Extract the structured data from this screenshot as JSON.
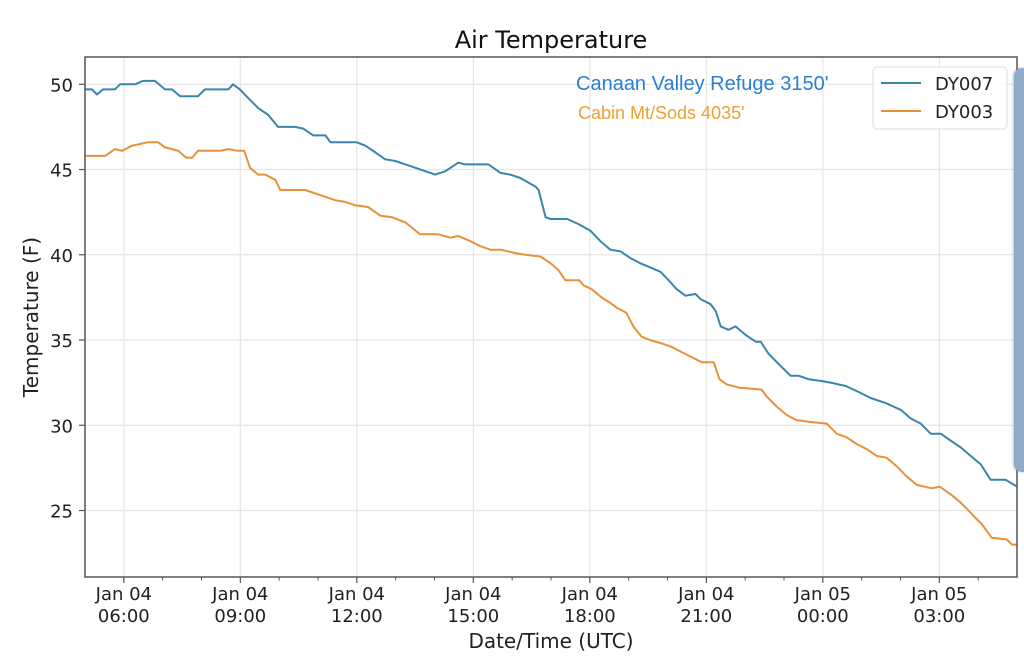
{
  "chart_data": {
    "type": "line",
    "title": "Air Temperature",
    "xlabel": "Date/Time (UTC)",
    "ylabel": "Temperature (F)",
    "x_unit": "hours since Jan 04 00:00 UTC",
    "xlim": [
      5.0,
      29.0
    ],
    "ylim": [
      21.1,
      51.6
    ],
    "grid": true,
    "yticks": [
      25,
      30,
      35,
      40,
      45,
      50
    ],
    "xticks": [
      {
        "x": 6,
        "label": [
          "Jan 04",
          "06:00"
        ]
      },
      {
        "x": 9,
        "label": [
          "Jan 04",
          "09:00"
        ]
      },
      {
        "x": 12,
        "label": [
          "Jan 04",
          "12:00"
        ]
      },
      {
        "x": 15,
        "label": [
          "Jan 04",
          "15:00"
        ]
      },
      {
        "x": 18,
        "label": [
          "Jan 04",
          "18:00"
        ]
      },
      {
        "x": 21,
        "label": [
          "Jan 04",
          "21:00"
        ]
      },
      {
        "x": 24,
        "label": [
          "Jan 05",
          "00:00"
        ]
      },
      {
        "x": 27,
        "label": [
          "Jan 05",
          "03:00"
        ]
      }
    ],
    "minor_xticks": [
      7,
      8,
      10,
      11,
      13,
      14,
      16,
      17,
      19,
      20,
      22,
      23,
      25,
      26,
      28
    ],
    "legend": {
      "position": "top-right",
      "entries": [
        "DY007",
        "DY003"
      ]
    },
    "annotations": [
      {
        "text": "Canaan Valley Refuge 3150'",
        "color": "#2a7fd4"
      },
      {
        "text": "Cabin Mt/Sods 4035'",
        "color": "#f0a030"
      }
    ],
    "series": [
      {
        "name": "DY007",
        "color": "#3a84ad",
        "points": [
          [
            5.0,
            49.7
          ],
          [
            5.18,
            49.7
          ],
          [
            5.31,
            49.4
          ],
          [
            5.46,
            49.7
          ],
          [
            5.77,
            49.7
          ],
          [
            5.9,
            50.0
          ],
          [
            6.29,
            50.0
          ],
          [
            6.49,
            50.2
          ],
          [
            6.8,
            50.2
          ],
          [
            7.06,
            49.7
          ],
          [
            7.24,
            49.7
          ],
          [
            7.45,
            49.3
          ],
          [
            7.91,
            49.3
          ],
          [
            8.09,
            49.7
          ],
          [
            8.69,
            49.7
          ],
          [
            8.81,
            50.0
          ],
          [
            8.99,
            49.7
          ],
          [
            9.2,
            49.2
          ],
          [
            9.46,
            48.6
          ],
          [
            9.72,
            48.2
          ],
          [
            9.97,
            47.5
          ],
          [
            10.41,
            47.5
          ],
          [
            10.62,
            47.4
          ],
          [
            10.88,
            47.0
          ],
          [
            11.19,
            47.0
          ],
          [
            11.32,
            46.6
          ],
          [
            11.99,
            46.6
          ],
          [
            12.22,
            46.4
          ],
          [
            12.48,
            46.0
          ],
          [
            12.73,
            45.6
          ],
          [
            12.99,
            45.5
          ],
          [
            13.25,
            45.3
          ],
          [
            13.51,
            45.1
          ],
          [
            13.76,
            44.9
          ],
          [
            14.02,
            44.7
          ],
          [
            14.28,
            44.9
          ],
          [
            14.61,
            45.4
          ],
          [
            14.79,
            45.3
          ],
          [
            15.39,
            45.3
          ],
          [
            15.7,
            44.8
          ],
          [
            15.95,
            44.7
          ],
          [
            16.21,
            44.5
          ],
          [
            16.6,
            44.0
          ],
          [
            16.68,
            43.8
          ],
          [
            16.86,
            42.2
          ],
          [
            16.99,
            42.1
          ],
          [
            17.42,
            42.1
          ],
          [
            17.71,
            41.8
          ],
          [
            18.02,
            41.4
          ],
          [
            18.27,
            40.8
          ],
          [
            18.53,
            40.3
          ],
          [
            18.79,
            40.2
          ],
          [
            19.05,
            39.8
          ],
          [
            19.3,
            39.5
          ],
          [
            19.51,
            39.3
          ],
          [
            19.82,
            39.0
          ],
          [
            20.03,
            38.5
          ],
          [
            20.23,
            38.0
          ],
          [
            20.46,
            37.6
          ],
          [
            20.72,
            37.7
          ],
          [
            20.85,
            37.4
          ],
          [
            21.11,
            37.1
          ],
          [
            21.24,
            36.7
          ],
          [
            21.37,
            35.8
          ],
          [
            21.57,
            35.6
          ],
          [
            21.75,
            35.8
          ],
          [
            22.01,
            35.3
          ],
          [
            22.27,
            34.9
          ],
          [
            22.4,
            34.9
          ],
          [
            22.6,
            34.2
          ],
          [
            22.86,
            33.6
          ],
          [
            23.17,
            32.9
          ],
          [
            23.38,
            32.9
          ],
          [
            23.63,
            32.7
          ],
          [
            23.94,
            32.6
          ],
          [
            24.2,
            32.5
          ],
          [
            24.59,
            32.3
          ],
          [
            24.97,
            31.9
          ],
          [
            25.23,
            31.6
          ],
          [
            25.62,
            31.3
          ],
          [
            26.01,
            30.9
          ],
          [
            26.26,
            30.4
          ],
          [
            26.52,
            30.1
          ],
          [
            26.78,
            29.5
          ],
          [
            27.04,
            29.5
          ],
          [
            27.29,
            29.1
          ],
          [
            27.55,
            28.7
          ],
          [
            27.81,
            28.2
          ],
          [
            28.07,
            27.7
          ],
          [
            28.32,
            26.8
          ],
          [
            28.71,
            26.8
          ],
          [
            29.0,
            26.4
          ]
        ]
      },
      {
        "name": "DY003",
        "color": "#e8913a",
        "points": [
          [
            5.0,
            45.8
          ],
          [
            5.52,
            45.8
          ],
          [
            5.77,
            46.2
          ],
          [
            5.95,
            46.1
          ],
          [
            6.21,
            46.4
          ],
          [
            6.42,
            46.5
          ],
          [
            6.62,
            46.6
          ],
          [
            6.88,
            46.6
          ],
          [
            7.06,
            46.3
          ],
          [
            7.24,
            46.2
          ],
          [
            7.4,
            46.1
          ],
          [
            7.6,
            45.7
          ],
          [
            7.76,
            45.7
          ],
          [
            7.91,
            46.1
          ],
          [
            8.48,
            46.1
          ],
          [
            8.69,
            46.2
          ],
          [
            8.94,
            46.1
          ],
          [
            9.1,
            46.1
          ],
          [
            9.25,
            45.1
          ],
          [
            9.46,
            44.7
          ],
          [
            9.64,
            44.7
          ],
          [
            9.9,
            44.4
          ],
          [
            10.03,
            43.8
          ],
          [
            10.44,
            43.8
          ],
          [
            10.67,
            43.8
          ],
          [
            10.93,
            43.6
          ],
          [
            11.19,
            43.4
          ],
          [
            11.44,
            43.2
          ],
          [
            11.7,
            43.1
          ],
          [
            11.96,
            42.9
          ],
          [
            12.29,
            42.8
          ],
          [
            12.6,
            42.3
          ],
          [
            12.91,
            42.2
          ],
          [
            13.25,
            41.9
          ],
          [
            13.63,
            41.2
          ],
          [
            14.1,
            41.2
          ],
          [
            14.41,
            41.0
          ],
          [
            14.61,
            41.1
          ],
          [
            14.92,
            40.8
          ],
          [
            15.18,
            40.5
          ],
          [
            15.44,
            40.3
          ],
          [
            15.7,
            40.3
          ],
          [
            16.08,
            40.1
          ],
          [
            16.34,
            40.0
          ],
          [
            16.73,
            39.9
          ],
          [
            16.99,
            39.5
          ],
          [
            17.19,
            39.1
          ],
          [
            17.37,
            38.5
          ],
          [
            17.73,
            38.5
          ],
          [
            17.84,
            38.2
          ],
          [
            18.04,
            38.0
          ],
          [
            18.3,
            37.5
          ],
          [
            18.51,
            37.2
          ],
          [
            18.69,
            36.9
          ],
          [
            18.94,
            36.6
          ],
          [
            19.12,
            35.8
          ],
          [
            19.33,
            35.2
          ],
          [
            19.54,
            35.0
          ],
          [
            19.85,
            34.8
          ],
          [
            20.1,
            34.6
          ],
          [
            20.36,
            34.3
          ],
          [
            20.62,
            34.0
          ],
          [
            20.88,
            33.7
          ],
          [
            21.19,
            33.7
          ],
          [
            21.34,
            32.7
          ],
          [
            21.52,
            32.4
          ],
          [
            21.86,
            32.2
          ],
          [
            22.42,
            32.1
          ],
          [
            22.55,
            31.7
          ],
          [
            22.81,
            31.1
          ],
          [
            23.07,
            30.6
          ],
          [
            23.32,
            30.3
          ],
          [
            23.66,
            30.2
          ],
          [
            24.1,
            30.1
          ],
          [
            24.36,
            29.5
          ],
          [
            24.61,
            29.3
          ],
          [
            24.87,
            28.9
          ],
          [
            25.13,
            28.6
          ],
          [
            25.39,
            28.2
          ],
          [
            25.64,
            28.1
          ],
          [
            25.9,
            27.6
          ],
          [
            26.16,
            27.0
          ],
          [
            26.42,
            26.5
          ],
          [
            26.8,
            26.3
          ],
          [
            27.01,
            26.4
          ],
          [
            27.32,
            25.9
          ],
          [
            27.53,
            25.5
          ],
          [
            27.71,
            25.1
          ],
          [
            27.96,
            24.5
          ],
          [
            28.09,
            24.2
          ],
          [
            28.35,
            23.4
          ],
          [
            28.74,
            23.3
          ],
          [
            28.87,
            23.0
          ],
          [
            29.0,
            23.0
          ]
        ]
      }
    ]
  }
}
